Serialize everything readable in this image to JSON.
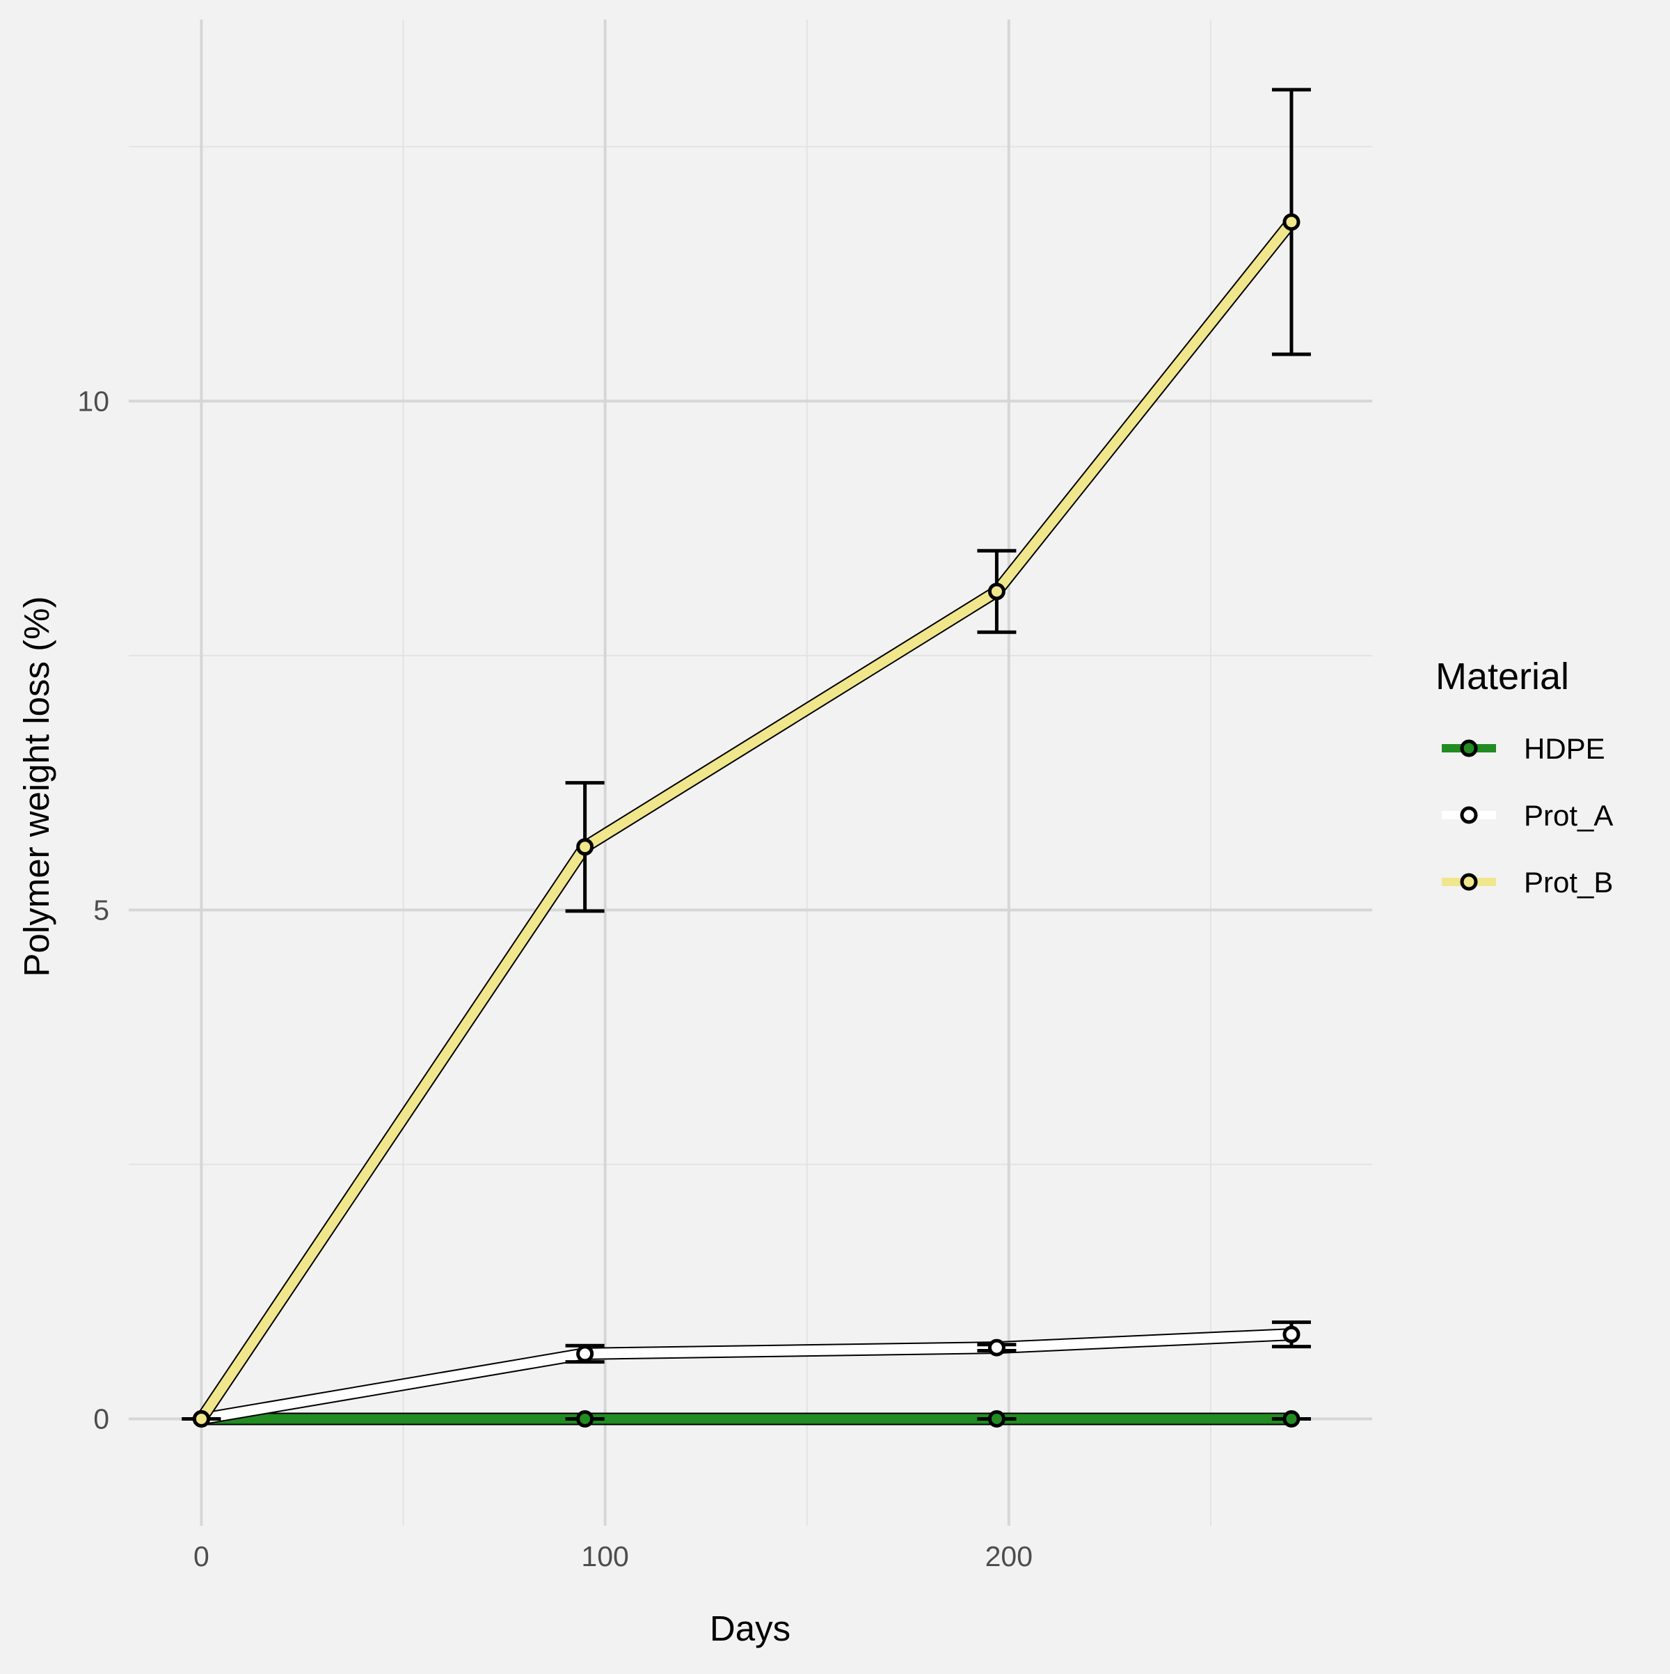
{
  "chart_data": {
    "type": "line",
    "xlabel": "Days",
    "ylabel": "Polymer weight loss (%)",
    "xlim": [
      -18,
      290
    ],
    "ylim": [
      -1.05,
      13.75
    ],
    "x_ticks": [
      0,
      100,
      200
    ],
    "y_ticks": [
      0,
      5,
      10
    ],
    "grid": true,
    "legend": {
      "title": "Material",
      "position": "right"
    },
    "series": [
      {
        "name": "HDPE",
        "color": "#228b22",
        "points": [
          {
            "x": 0,
            "y": 0,
            "err": 0
          },
          {
            "x": 95,
            "y": 0,
            "err": 0
          },
          {
            "x": 197,
            "y": 0,
            "err": 0
          },
          {
            "x": 270,
            "y": 0,
            "err": 0
          }
        ]
      },
      {
        "name": "Prot_A",
        "color": "#ffffff",
        "points": [
          {
            "x": 0,
            "y": 0,
            "err": 0
          },
          {
            "x": 95,
            "y": 0.64,
            "err": 0.08
          },
          {
            "x": 197,
            "y": 0.7,
            "err": 0.03
          },
          {
            "x": 270,
            "y": 0.83,
            "err": 0.12
          }
        ]
      },
      {
        "name": "Prot_B",
        "color": "#f0e68c",
        "points": [
          {
            "x": 0,
            "y": 0,
            "err": 0
          },
          {
            "x": 95,
            "y": 5.62,
            "err": 0.63
          },
          {
            "x": 197,
            "y": 8.13,
            "err": 0.4
          },
          {
            "x": 270,
            "y": 11.76,
            "err": 1.3
          }
        ]
      }
    ]
  }
}
